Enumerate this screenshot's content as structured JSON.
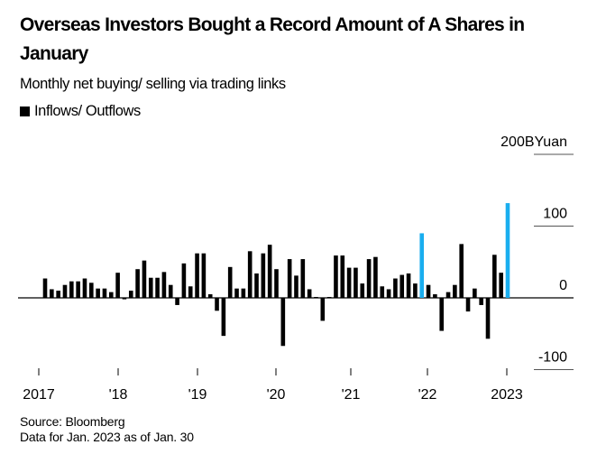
{
  "chart_data": {
    "type": "bar",
    "title": "Overseas Investors Bought a Record Amount of A Shares in January",
    "subtitle": "Monthly net buying/ selling via trading links",
    "legend": [
      {
        "name": "Inflows/ Outflows",
        "color": "#000000"
      }
    ],
    "ylabel": "BYuan",
    "ylim": [
      -100,
      200
    ],
    "yticks": [
      -100,
      0,
      100,
      200
    ],
    "ytick_labels": [
      "-100",
      "0",
      "100",
      "200BYuan"
    ],
    "xtick_labels": [
      "2017",
      "'18",
      "'19",
      "'20",
      "'21",
      "'22",
      "2023"
    ],
    "grid": "horizontal, right side only",
    "bar_color": "#000000",
    "highlight_color": "#1AAEEF",
    "highlighted": [
      "2021-12",
      "2023-01"
    ],
    "x": [
      "2017-03",
      "2017-04",
      "2017-05",
      "2017-06",
      "2017-07",
      "2017-08",
      "2017-09",
      "2017-10",
      "2017-11",
      "2017-12",
      "2018-01",
      "2018-02",
      "2018-03",
      "2018-04",
      "2018-05",
      "2018-06",
      "2018-07",
      "2018-08",
      "2018-09",
      "2018-10",
      "2018-11",
      "2018-12",
      "2019-01",
      "2019-02",
      "2019-03",
      "2019-04",
      "2019-05",
      "2019-06",
      "2019-07",
      "2019-08",
      "2019-09",
      "2019-10",
      "2019-11",
      "2019-12",
      "2020-01",
      "2020-02",
      "2020-03",
      "2020-04",
      "2020-05",
      "2020-06",
      "2020-07",
      "2020-08",
      "2020-09",
      "2020-10",
      "2020-11",
      "2020-12",
      "2021-01",
      "2021-02",
      "2021-03",
      "2021-04",
      "2021-05",
      "2021-06",
      "2021-07",
      "2021-08",
      "2021-09",
      "2021-10",
      "2021-11",
      "2021-12",
      "2022-01",
      "2022-02",
      "2022-03",
      "2022-04",
      "2022-05",
      "2022-06",
      "2022-07",
      "2022-08",
      "2022-09",
      "2022-10",
      "2022-11",
      "2022-12",
      "2023-01"
    ],
    "values": [
      27,
      12,
      10,
      18,
      23,
      23,
      27,
      21,
      13,
      13,
      8,
      35,
      -2,
      10,
      40,
      52,
      28,
      28,
      36,
      18,
      -10,
      48,
      16,
      62,
      62,
      5,
      -18,
      -53,
      43,
      13,
      13,
      65,
      34,
      62,
      74,
      40,
      -67,
      54,
      31,
      54,
      12,
      0,
      -32,
      0,
      59,
      59,
      42,
      42,
      20,
      54,
      57,
      16,
      12,
      27,
      32,
      34,
      20,
      90,
      18,
      5,
      -46,
      8,
      18,
      75,
      -19,
      13,
      -10,
      -57,
      60,
      35,
      132
    ]
  },
  "footer": {
    "source": "Source: Bloomberg",
    "note": "Data for Jan. 2023 as of Jan. 30"
  }
}
